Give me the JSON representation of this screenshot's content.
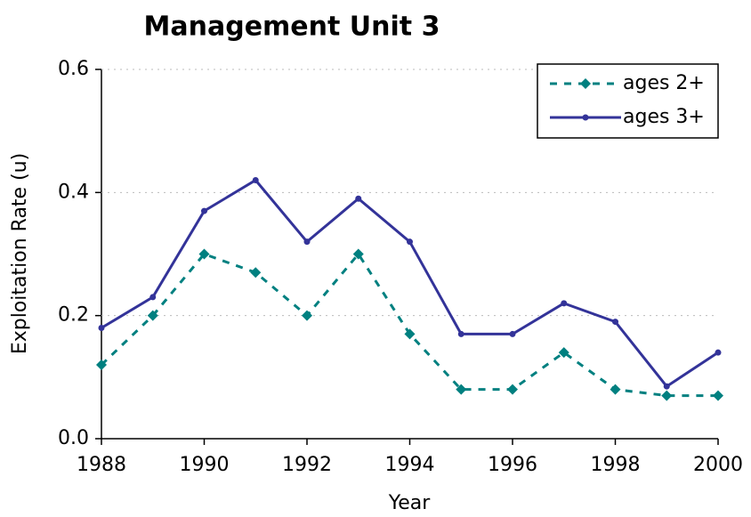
{
  "chart_data": {
    "type": "line",
    "title": "Management Unit 3",
    "xlabel": "Year",
    "ylabel": "Exploitation Rate (u)",
    "x": [
      1988,
      1989,
      1990,
      1991,
      1992,
      1993,
      1994,
      1995,
      1996,
      1997,
      1998,
      1999,
      2000
    ],
    "series": [
      {
        "name": "ages 2+",
        "color": "#008080",
        "dashed": true,
        "marker": "diamond",
        "values": [
          0.12,
          0.2,
          0.3,
          0.27,
          0.2,
          0.3,
          0.17,
          0.08,
          0.08,
          0.14,
          0.08,
          0.07,
          0.07
        ]
      },
      {
        "name": "ages 3+",
        "color": "#333399",
        "dashed": false,
        "marker": "circle",
        "values": [
          0.18,
          0.23,
          0.37,
          0.42,
          0.32,
          0.39,
          0.32,
          0.17,
          0.17,
          0.22,
          0.19,
          0.085,
          0.14
        ]
      }
    ],
    "xlim": [
      1988,
      2000
    ],
    "xticks": [
      1988,
      1990,
      1992,
      1994,
      1996,
      1998,
      2000
    ],
    "ylim": [
      0,
      0.6
    ],
    "yticks": [
      {
        "value": 0,
        "label": "0.0"
      },
      0.2,
      0.4,
      0.6
    ],
    "grid": true,
    "legend": "upper right"
  }
}
